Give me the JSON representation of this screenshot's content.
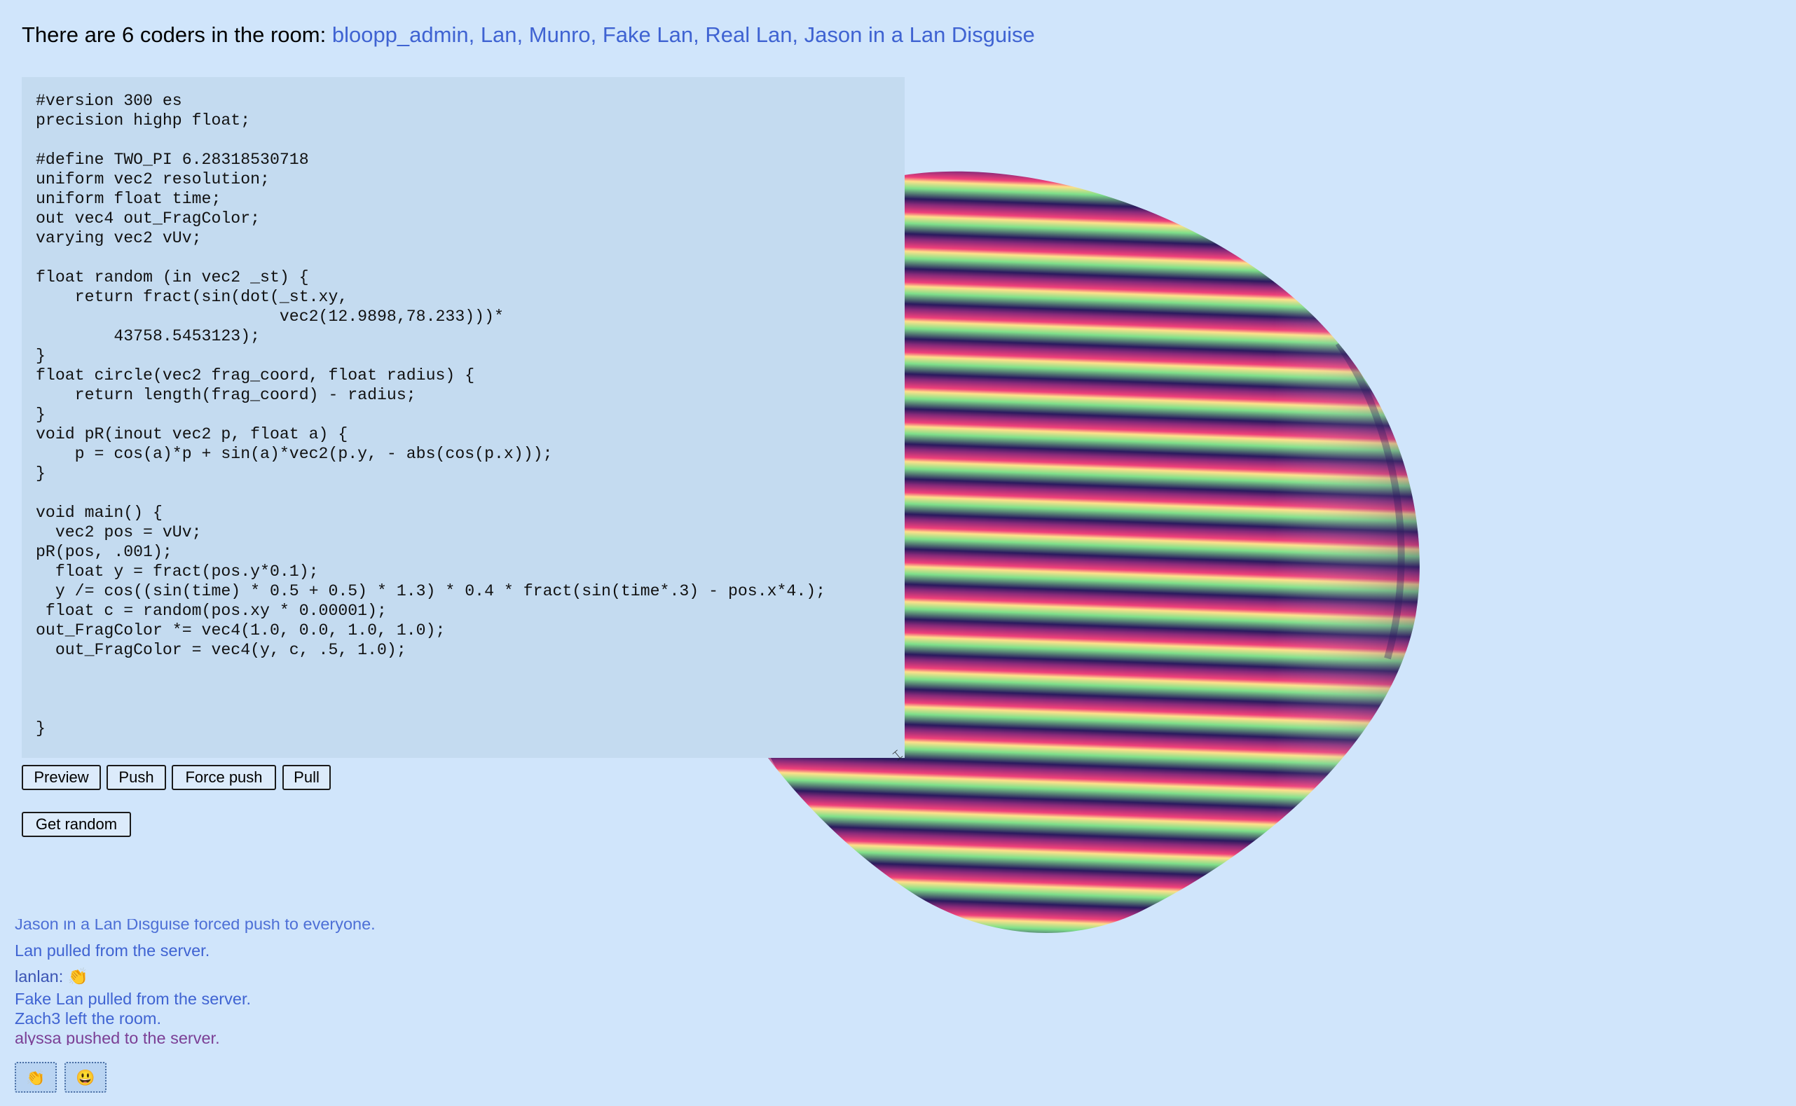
{
  "header": {
    "prefix": "There are 6 coders in the room: ",
    "coders": "bloopp_admin, Lan, Munro, Fake Lan, Real Lan, Jason in a Lan Disguise"
  },
  "editor": {
    "code": "#version 300 es\nprecision highp float;\n\n#define TWO_PI 6.28318530718\nuniform vec2 resolution;\nuniform float time;\nout vec4 out_FragColor;\nvarying vec2 vUv;\n\nfloat random (in vec2 _st) {\n    return fract(sin(dot(_st.xy,\n                         vec2(12.9898,78.233)))*\n        43758.5453123);\n}\nfloat circle(vec2 frag_coord, float radius) {\n    return length(frag_coord) - radius;\n}\nvoid pR(inout vec2 p, float a) {\n    p = cos(a)*p + sin(a)*vec2(p.y, - abs(cos(p.x)));\n}\n\nvoid main() {\n  vec2 pos = vUv;\npR(pos, .001);\n  float y = fract(pos.y*0.1);\n  y /= cos((sin(time) * 0.5 + 0.5) * 1.3) * 0.4 * fract(sin(time*.3) - pos.x*4.);\n float c = random(pos.xy * 0.00001);\nout_FragColor *= vec4(1.0, 0.0, 1.0, 1.0);\n  out_FragColor = vec4(y, c, .5, 1.0);\n\n\n\n}"
  },
  "buttons": {
    "preview": "Preview",
    "push": "Push",
    "force_push": "Force push",
    "pull": "Pull",
    "get_random": "Get random"
  },
  "log": {
    "cut_entry": "Jason in a Lan Disguise forced push to everyone.",
    "entries": [
      "Lan pulled from the server.",
      "lanlan: 👏",
      "Fake Lan pulled from the server.",
      "Zach3 left the room.",
      "alyssa pushed to the server."
    ],
    "colors": {
      "system": "#3f63d2",
      "chat": "#3b55b5",
      "push": "#7b3f95"
    }
  },
  "reactions": {
    "clap": "👏",
    "smile": "😃"
  },
  "shader_preview": {
    "band_colors": [
      "#2a1a5e",
      "#7fe08a",
      "#ffe08a",
      "#f0407a"
    ]
  }
}
